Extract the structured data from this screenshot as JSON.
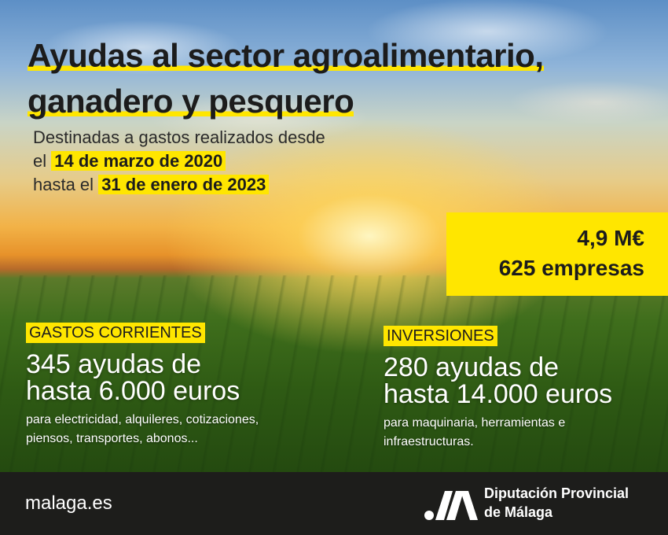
{
  "title": {
    "line1": "Ayudas al sector agroalimentario,",
    "line2": "ganadero y pesquero"
  },
  "subtitle": {
    "line1": "Destinadas a gastos realizados desde",
    "line2_prefix": "el",
    "start_date": "14 de marzo de 2020",
    "line3_prefix": "hasta el",
    "end_date": "31 de enero de 2023"
  },
  "totals": {
    "amount": "4,9 M€",
    "companies": "625 empresas"
  },
  "gastos_corrientes": {
    "tag": "GASTOS CORRIENTES",
    "line1": "345 ayudas de",
    "line2": "hasta 6.000 euros",
    "detail1": "para electricidad, alquileres, cotizaciones,",
    "detail2": "piensos, transportes, abonos..."
  },
  "inversiones": {
    "tag": "INVERSIONES",
    "line1": "280 ayudas de",
    "line2": "hasta 14.000 euros",
    "detail1": "para maquinaria, herramientas e",
    "detail2": "infraestructuras."
  },
  "footer": {
    "website": "malaga.es",
    "org_line1": "Diputación Provincial",
    "org_line2": "de Málaga",
    "logo_icon": "diputacion-logo-icon"
  },
  "colors": {
    "accent": "#ffe600",
    "footer_bg": "#1d1d1b",
    "text_dark": "#1c1c1c"
  }
}
